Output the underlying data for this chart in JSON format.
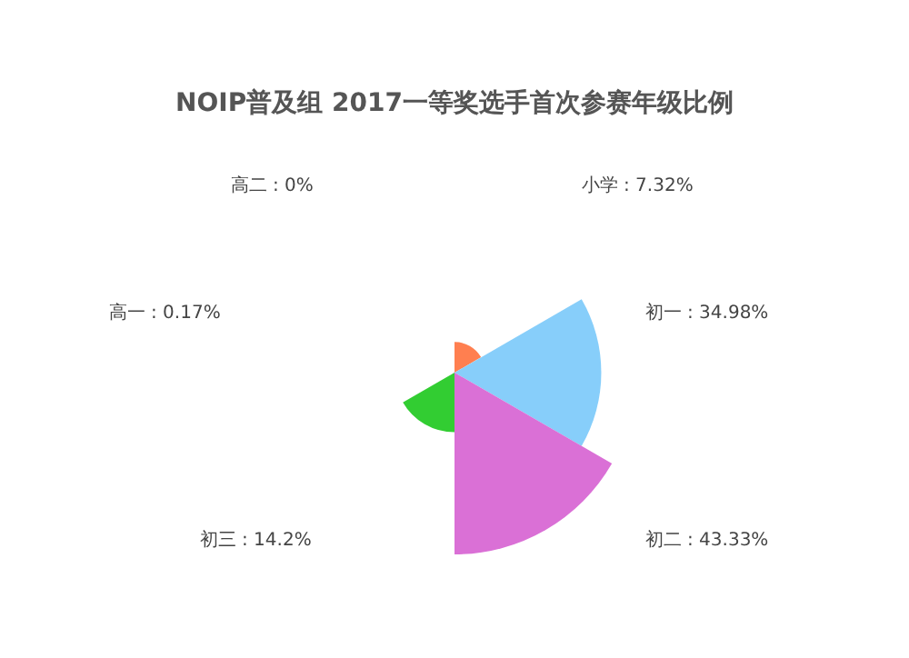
{
  "chart_data": {
    "type": "other",
    "title": "NOIP普及组  2017一等奖选手首次参赛年级比例",
    "categories": [
      "小学",
      "初一",
      "初二",
      "初三",
      "高一",
      "高二"
    ],
    "values": [
      7.32,
      34.98,
      43.33,
      14.2,
      0.17,
      0
    ],
    "value_labels": [
      ": 7.32%",
      ": 34.98%",
      ": 43.33%",
      ": 14.2%",
      ": 0.17%",
      ": 0%"
    ],
    "colors": [
      "#ff7f50",
      "#87cefa",
      "#da70d6",
      "#32cd32",
      "#6495ed",
      "#ff69b4"
    ]
  }
}
